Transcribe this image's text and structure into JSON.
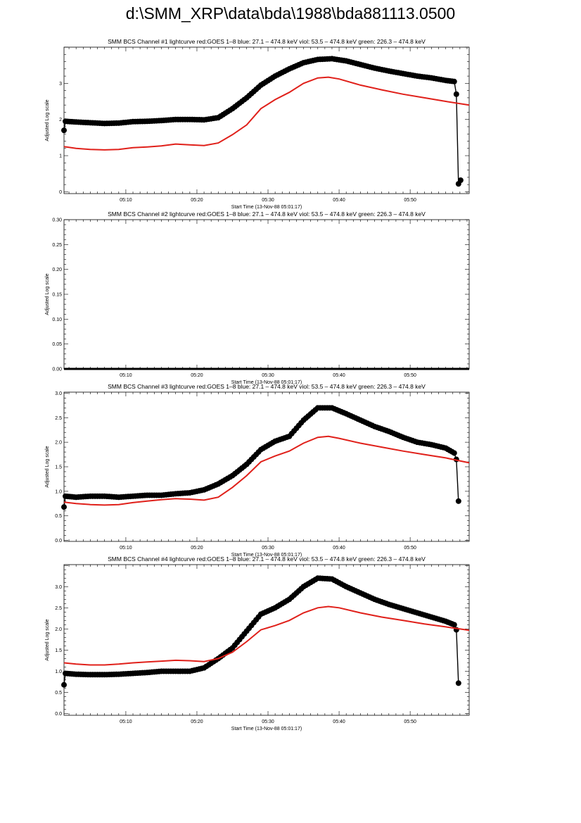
{
  "title": "d:\\SMM_XRP\\data\\bda\\1988\\bda881113.0500",
  "colors": {
    "black": "#000000",
    "red": "#e0201a"
  },
  "chart_data": [
    {
      "type": "line",
      "title": "SMM BCS Channel #1 lightcurve  red:GOES 1–8  blue: 27.1 – 474.8 keV  viol: 53.5 – 474.8 keV  green: 226.3 – 474.8 keV",
      "xlabel": "Start Time (13-Nov-88 05:01:17)",
      "ylabel": "Adjusted Log scale",
      "xlim": [
        1.3,
        58.3
      ],
      "ylim": [
        -0.05,
        4.0
      ],
      "xticks": [
        10,
        20,
        30,
        40,
        50
      ],
      "xtick_labels": [
        "05:10",
        "05:20",
        "05:30",
        "05:40",
        "05:50"
      ],
      "yticks": [
        0,
        1,
        2,
        3
      ],
      "ytick_labels": [
        "0",
        "1",
        "2",
        "3"
      ],
      "series": [
        {
          "color": "black",
          "marker": "circle",
          "x": [
            1.3,
            1.5,
            3,
            5,
            7,
            9,
            11,
            13,
            15,
            17,
            19,
            21,
            23,
            25,
            27,
            29,
            31,
            33,
            35,
            37,
            39,
            41,
            43,
            45,
            47,
            49,
            51,
            53,
            55,
            56.2,
            56.5,
            56.8,
            57.1
          ],
          "values": [
            1.7,
            1.95,
            1.93,
            1.91,
            1.89,
            1.9,
            1.94,
            1.95,
            1.97,
            2.0,
            2.0,
            1.99,
            2.05,
            2.3,
            2.6,
            2.95,
            3.2,
            3.4,
            3.57,
            3.66,
            3.68,
            3.62,
            3.52,
            3.42,
            3.34,
            3.27,
            3.2,
            3.15,
            3.08,
            3.05,
            2.7,
            0.22,
            0.32
          ]
        },
        {
          "color": "red",
          "x": [
            1.3,
            3,
            5,
            7,
            9,
            11,
            13,
            15,
            17,
            19,
            21,
            23,
            25,
            27,
            29,
            31,
            33,
            35,
            37,
            38.5,
            40,
            43,
            46,
            49,
            52,
            55,
            58.3
          ],
          "values": [
            1.25,
            1.2,
            1.17,
            1.16,
            1.17,
            1.22,
            1.24,
            1.27,
            1.32,
            1.3,
            1.28,
            1.35,
            1.58,
            1.85,
            2.3,
            2.55,
            2.75,
            3.0,
            3.15,
            3.17,
            3.12,
            2.95,
            2.82,
            2.7,
            2.6,
            2.5,
            2.4
          ]
        }
      ]
    },
    {
      "type": "line",
      "title": "SMM BCS Channel #2 lightcurve  red:GOES 1–8  blue: 27.1 – 474.8 keV  viol: 53.5 – 474.8 keV  green: 226.3 – 474.8 keV",
      "xlabel": "Start Time (13-Nov-88 05:01:17)",
      "ylabel": "Adjusted Log scale",
      "xlim": [
        1.3,
        58.3
      ],
      "ylim": [
        0,
        0.3
      ],
      "xticks": [
        10,
        20,
        30,
        40,
        50
      ],
      "xtick_labels": [
        "05:10",
        "05:20",
        "05:30",
        "05:40",
        "05:50"
      ],
      "yticks": [
        0,
        0.05,
        0.1,
        0.15,
        0.2,
        0.25,
        0.3
      ],
      "ytick_labels": [
        "0.00",
        "0.05",
        "0.10",
        "0.15",
        "0.20",
        "0.25",
        "0.30"
      ],
      "series": [
        {
          "color": "black",
          "x": [
            1.3,
            58.3
          ],
          "values": [
            0,
            0
          ]
        }
      ]
    },
    {
      "type": "line",
      "title": "SMM BCS Channel #3 lightcurve  red:GOES 1–8  blue: 27.1 – 474.8 keV  viol: 53.5 – 474.8 keV  green: 226.3 – 474.8 keV",
      "xlabel": "Start Time (13-Nov-88 05:01:17)",
      "ylabel": "Adjusted Log scale",
      "xlim": [
        1.3,
        58.3
      ],
      "ylim": [
        -0.02,
        3.02
      ],
      "xticks": [
        10,
        20,
        30,
        40,
        50
      ],
      "xtick_labels": [
        "05:10",
        "05:20",
        "05:30",
        "05:40",
        "05:50"
      ],
      "yticks": [
        0,
        0.5,
        1,
        1.5,
        2,
        2.5,
        3
      ],
      "ytick_labels": [
        "0.0",
        "0.5",
        "1.0",
        "1.5",
        "2.0",
        "2.5",
        "3.0"
      ],
      "series": [
        {
          "color": "black",
          "marker": "circle",
          "x": [
            1.3,
            1.5,
            3,
            5,
            7,
            9,
            11,
            13,
            15,
            17,
            19,
            21,
            23,
            25,
            27,
            29,
            31,
            33,
            35,
            37,
            39,
            41,
            43,
            45,
            47,
            49,
            51,
            53,
            55,
            56.2,
            56.5,
            56.8
          ],
          "values": [
            0.68,
            0.9,
            0.88,
            0.9,
            0.9,
            0.88,
            0.9,
            0.92,
            0.92,
            0.95,
            0.97,
            1.03,
            1.15,
            1.32,
            1.55,
            1.85,
            2.02,
            2.12,
            2.45,
            2.7,
            2.7,
            2.58,
            2.45,
            2.32,
            2.22,
            2.1,
            2.0,
            1.95,
            1.88,
            1.78,
            1.65,
            0.8
          ]
        },
        {
          "color": "red",
          "x": [
            1.3,
            3,
            5,
            7,
            9,
            11,
            13,
            15,
            17,
            19,
            21,
            23,
            25,
            27,
            29,
            31,
            33,
            35,
            37,
            38.5,
            40,
            43,
            46,
            49,
            52,
            55,
            58.3
          ],
          "values": [
            0.78,
            0.75,
            0.73,
            0.72,
            0.73,
            0.77,
            0.8,
            0.83,
            0.85,
            0.84,
            0.82,
            0.88,
            1.08,
            1.32,
            1.6,
            1.72,
            1.82,
            1.98,
            2.1,
            2.12,
            2.08,
            1.98,
            1.9,
            1.82,
            1.75,
            1.68,
            1.58
          ]
        }
      ]
    },
    {
      "type": "line",
      "title": "SMM BCS Channel #4 lightcurve  red:GOES 1–8  blue: 27.1 – 474.8 keV  viol: 53.5 – 474.8 keV  green: 226.3 – 474.8 keV",
      "xlabel": "Start Time (13-Nov-88 05:01:17)",
      "ylabel": "Adjusted Log scale",
      "xlim": [
        1.3,
        58.3
      ],
      "ylim": [
        -0.04,
        3.52
      ],
      "xticks": [
        10,
        20,
        30,
        40,
        50
      ],
      "xtick_labels": [
        "05:10",
        "05:20",
        "05:30",
        "05:40",
        "05:50"
      ],
      "yticks": [
        0,
        0.5,
        1,
        1.5,
        2,
        2.5,
        3
      ],
      "ytick_labels": [
        "0.0",
        "0.5",
        "1.0",
        "1.5",
        "2.0",
        "2.5",
        "3.0"
      ],
      "series": [
        {
          "color": "black",
          "marker": "circle",
          "x": [
            1.3,
            1.5,
            3,
            5,
            7,
            9,
            11,
            13,
            15,
            17,
            19,
            21,
            23,
            25,
            27,
            29,
            31,
            33,
            35,
            37,
            39,
            41,
            43,
            45,
            47,
            49,
            51,
            53,
            55,
            56.2,
            56.5,
            56.8
          ],
          "values": [
            0.68,
            0.95,
            0.93,
            0.92,
            0.92,
            0.93,
            0.95,
            0.97,
            1.0,
            1.0,
            1.0,
            1.08,
            1.3,
            1.55,
            1.95,
            2.35,
            2.5,
            2.7,
            3.0,
            3.2,
            3.18,
            3.0,
            2.85,
            2.7,
            2.58,
            2.48,
            2.38,
            2.28,
            2.18,
            2.1,
            1.98,
            0.72
          ]
        },
        {
          "color": "red",
          "x": [
            1.3,
            3,
            5,
            7,
            9,
            11,
            13,
            15,
            17,
            19,
            21,
            23,
            25,
            27,
            29,
            31,
            33,
            35,
            37,
            38.5,
            40,
            43,
            46,
            49,
            52,
            55,
            58.3
          ],
          "values": [
            1.2,
            1.17,
            1.15,
            1.15,
            1.17,
            1.2,
            1.22,
            1.24,
            1.26,
            1.25,
            1.23,
            1.3,
            1.45,
            1.7,
            1.98,
            2.08,
            2.2,
            2.38,
            2.5,
            2.53,
            2.5,
            2.38,
            2.28,
            2.2,
            2.12,
            2.05,
            1.97
          ]
        }
      ]
    }
  ]
}
